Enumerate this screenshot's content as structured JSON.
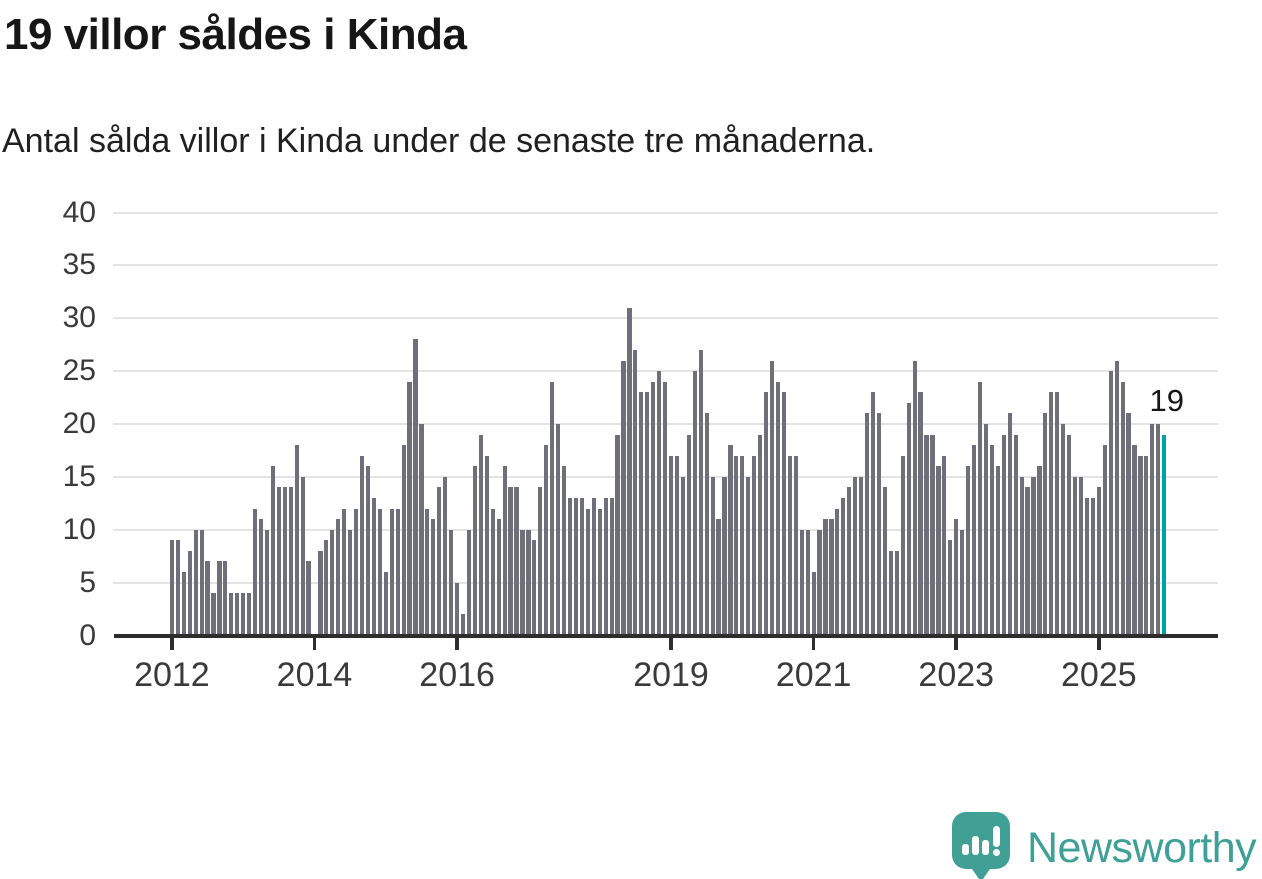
{
  "header": {
    "title": "19 villor såldes i Kinda",
    "subtitle": "Antal sålda villor i Kinda under de senaste tre månaderna."
  },
  "chart_data": {
    "type": "bar",
    "title": "19 villor såldes i Kinda",
    "subtitle": "Antal sålda villor i Kinda under de senaste tre månaderna.",
    "ylabel": "",
    "xlabel": "",
    "unit": "sålda villor (rullande tre månader)",
    "start_month": "2012-01",
    "frequency": "monthly",
    "values": [
      9,
      9,
      6,
      8,
      10,
      10,
      7,
      4,
      7,
      7,
      4,
      4,
      4,
      4,
      12,
      11,
      10,
      16,
      14,
      14,
      14,
      18,
      15,
      7,
      0,
      8,
      9,
      10,
      11,
      12,
      10,
      12,
      17,
      16,
      13,
      12,
      6,
      12,
      12,
      18,
      24,
      28,
      20,
      12,
      11,
      14,
      15,
      10,
      5,
      2,
      10,
      16,
      19,
      17,
      12,
      11,
      16,
      14,
      14,
      10,
      10,
      9,
      14,
      18,
      24,
      20,
      16,
      13,
      13,
      13,
      12,
      13,
      12,
      13,
      13,
      19,
      26,
      31,
      27,
      23,
      23,
      24,
      25,
      24,
      17,
      17,
      15,
      19,
      25,
      27,
      21,
      15,
      11,
      15,
      18,
      17,
      17,
      15,
      17,
      19,
      23,
      26,
      24,
      23,
      17,
      17,
      10,
      10,
      6,
      10,
      11,
      11,
      12,
      13,
      14,
      15,
      15,
      21,
      23,
      21,
      14,
      8,
      8,
      17,
      22,
      26,
      23,
      19,
      19,
      16,
      17,
      9,
      11,
      10,
      16,
      18,
      24,
      20,
      18,
      16,
      19,
      21,
      19,
      15,
      14,
      15,
      16,
      21,
      23,
      23,
      20,
      19,
      15,
      15,
      13,
      13,
      14,
      18,
      25,
      26,
      24,
      21,
      18,
      17,
      17,
      20,
      20,
      19
    ],
    "highlight": {
      "index": 167,
      "value": 19,
      "label": "19"
    },
    "y_ticks": [
      0,
      5,
      10,
      15,
      20,
      25,
      30,
      35,
      40
    ],
    "ylim": [
      0,
      40
    ],
    "x_tick_years": [
      2012,
      2014,
      2016,
      2019,
      2021,
      2023,
      2025
    ],
    "grid": true,
    "legend": "none",
    "bar_color": "#6F6F79",
    "highlight_color": "#00A2A6"
  },
  "annotation": {
    "last_value_label": "19"
  },
  "footer": {
    "brand": "Newsworthy",
    "logo_icon": "speech-bubble-bar-chart-icon",
    "brand_color": "#3EA096"
  }
}
